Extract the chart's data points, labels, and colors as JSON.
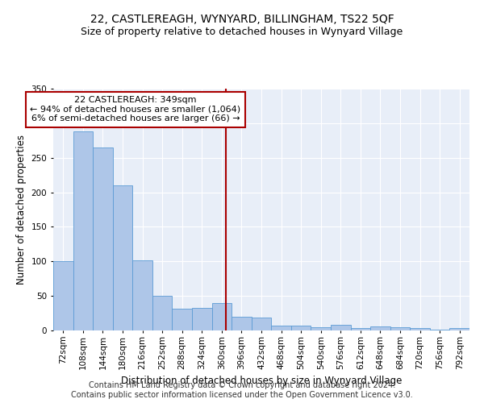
{
  "title": "22, CASTLEREAGH, WYNYARD, BILLINGHAM, TS22 5QF",
  "subtitle": "Size of property relative to detached houses in Wynyard Village",
  "xlabel": "Distribution of detached houses by size in Wynyard Village",
  "ylabel": "Number of detached properties",
  "footer1": "Contains HM Land Registry data © Crown copyright and database right 2024.",
  "footer2": "Contains public sector information licensed under the Open Government Licence v3.0.",
  "bar_labels": [
    "72sqm",
    "108sqm",
    "144sqm",
    "180sqm",
    "216sqm",
    "252sqm",
    "288sqm",
    "324sqm",
    "360sqm",
    "396sqm",
    "432sqm",
    "468sqm",
    "504sqm",
    "540sqm",
    "576sqm",
    "612sqm",
    "648sqm",
    "684sqm",
    "720sqm",
    "756sqm",
    "792sqm"
  ],
  "bar_values": [
    100,
    288,
    265,
    210,
    102,
    50,
    31,
    33,
    40,
    20,
    19,
    7,
    7,
    5,
    8,
    3,
    6,
    5,
    3,
    1,
    4
  ],
  "bar_color": "#aec6e8",
  "bar_edge_color": "#5b9bd5",
  "background_color": "#e8eef8",
  "grid_color": "#ffffff",
  "vline_color": "#aa0000",
  "annotation_line1": "22 CASTLEREAGH: 349sqm",
  "annotation_line2": "← 94% of detached houses are smaller (1,064)",
  "annotation_line3": "6% of semi-detached houses are larger (66) →",
  "annotation_box_color": "#aa0000",
  "ylim": [
    0,
    350
  ],
  "yticks": [
    0,
    50,
    100,
    150,
    200,
    250,
    300,
    350
  ],
  "title_fontsize": 10,
  "subtitle_fontsize": 9,
  "xlabel_fontsize": 8.5,
  "ylabel_fontsize": 8.5,
  "annotation_fontsize": 8,
  "footer_fontsize": 7,
  "tick_fontsize": 7.5
}
